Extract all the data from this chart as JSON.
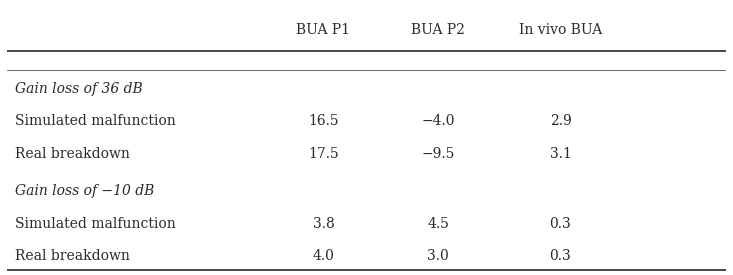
{
  "col_headers": [
    "BUA P1",
    "BUA P2",
    "In vivo BUA"
  ],
  "sections": [
    {
      "header": "Gain loss of 36 dB",
      "rows": [
        {
          "label": "Simulated malfunction",
          "values": [
            "16.5",
            "−4.0",
            "2.9"
          ]
        },
        {
          "label": "Real breakdown",
          "values": [
            "17.5",
            "−9.5",
            "3.1"
          ]
        }
      ]
    },
    {
      "header": "Gain loss of −10 dB",
      "rows": [
        {
          "label": "Simulated malfunction",
          "values": [
            "3.8",
            "4.5",
            "0.3"
          ]
        },
        {
          "label": "Real breakdown",
          "values": [
            "4.0",
            "3.0",
            "0.3"
          ]
        }
      ]
    }
  ],
  "bg_color": "#ffffff",
  "text_color": "#2a2a2a",
  "font_size": 10.0
}
